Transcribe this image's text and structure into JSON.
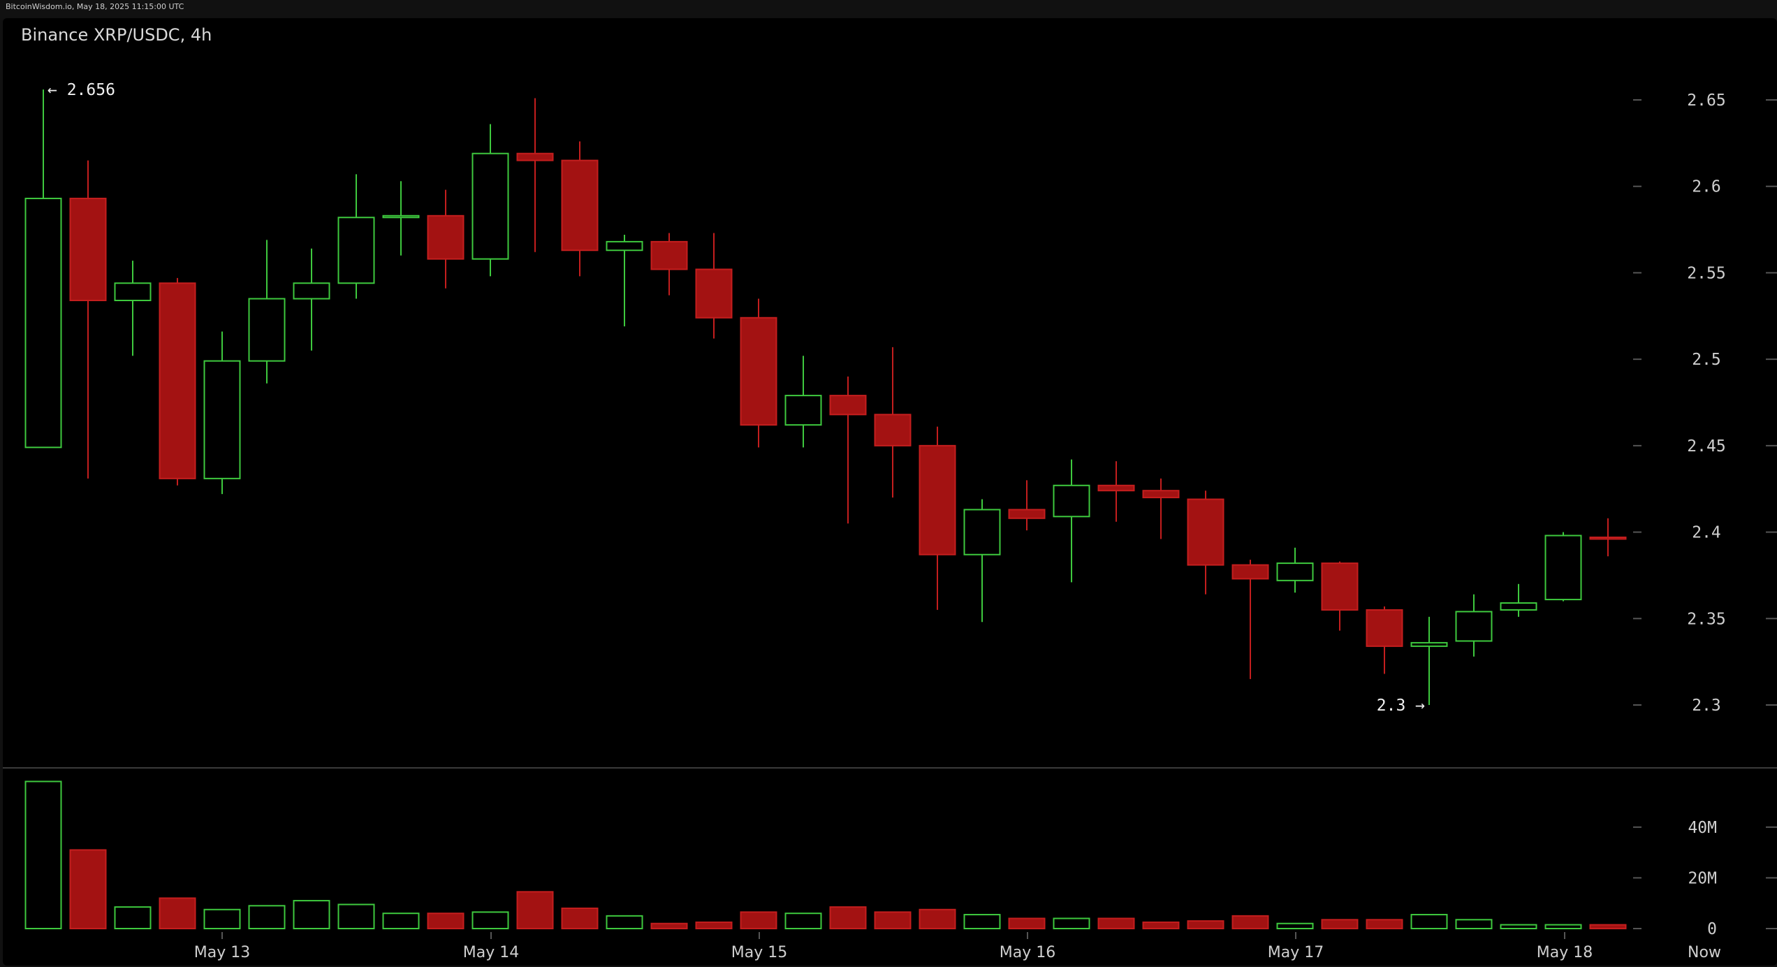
{
  "watermark": "BitcoinWisdom.io, May 18, 2025 11:15:00 UTC",
  "colors": {
    "up": "#3ec93e",
    "down": "#a31212",
    "down_edge": "#c41e1e",
    "tick": "#555555"
  },
  "chart_data": {
    "type": "candlestick",
    "title": "Binance XRP/USDC, 4h",
    "price_axis": {
      "ticks": [
        "2.3",
        "2.35",
        "2.4",
        "2.45",
        "2.5",
        "2.55",
        "2.6",
        "2.65"
      ],
      "range": [
        2.264,
        2.712
      ]
    },
    "volume_axis": {
      "ticks": [
        "0",
        "20M",
        "40M"
      ],
      "range": [
        0,
        60
      ]
    },
    "x_labels": [
      "May 13",
      "May 14",
      "May 15",
      "May 16",
      "May 17",
      "May 18",
      "Now"
    ],
    "annotations": {
      "high": "← 2.656",
      "low": "2.3 →"
    },
    "candles": [
      {
        "o": 2.449,
        "h": 2.656,
        "l": 2.449,
        "c": 2.593,
        "v": 58
      },
      {
        "o": 2.593,
        "h": 2.615,
        "l": 2.431,
        "c": 2.534,
        "v": 31
      },
      {
        "o": 2.534,
        "h": 2.557,
        "l": 2.502,
        "c": 2.544,
        "v": 8.5
      },
      {
        "o": 2.544,
        "h": 2.547,
        "l": 2.427,
        "c": 2.431,
        "v": 12
      },
      {
        "o": 2.431,
        "h": 2.516,
        "l": 2.422,
        "c": 2.499,
        "v": 7.5
      },
      {
        "o": 2.499,
        "h": 2.569,
        "l": 2.486,
        "c": 2.535,
        "v": 9
      },
      {
        "o": 2.535,
        "h": 2.564,
        "l": 2.505,
        "c": 2.544,
        "v": 11
      },
      {
        "o": 2.544,
        "h": 2.607,
        "l": 2.535,
        "c": 2.582,
        "v": 9.5
      },
      {
        "o": 2.582,
        "h": 2.603,
        "l": 2.56,
        "c": 2.583,
        "v": 6
      },
      {
        "o": 2.583,
        "h": 2.598,
        "l": 2.541,
        "c": 2.558,
        "v": 6
      },
      {
        "o": 2.558,
        "h": 2.636,
        "l": 2.548,
        "c": 2.619,
        "v": 6.5
      },
      {
        "o": 2.619,
        "h": 2.651,
        "l": 2.562,
        "c": 2.615,
        "v": 14.5
      },
      {
        "o": 2.615,
        "h": 2.626,
        "l": 2.548,
        "c": 2.563,
        "v": 8
      },
      {
        "o": 2.563,
        "h": 2.572,
        "l": 2.519,
        "c": 2.568,
        "v": 5
      },
      {
        "o": 2.568,
        "h": 2.573,
        "l": 2.537,
        "c": 2.552,
        "v": 2
      },
      {
        "o": 2.552,
        "h": 2.573,
        "l": 2.512,
        "c": 2.524,
        "v": 2.5
      },
      {
        "o": 2.524,
        "h": 2.535,
        "l": 2.449,
        "c": 2.462,
        "v": 6.5
      },
      {
        "o": 2.462,
        "h": 2.502,
        "l": 2.449,
        "c": 2.479,
        "v": 6
      },
      {
        "o": 2.479,
        "h": 2.49,
        "l": 2.405,
        "c": 2.468,
        "v": 8.5
      },
      {
        "o": 2.468,
        "h": 2.507,
        "l": 2.42,
        "c": 2.45,
        "v": 6.5
      },
      {
        "o": 2.45,
        "h": 2.461,
        "l": 2.355,
        "c": 2.387,
        "v": 7.5
      },
      {
        "o": 2.387,
        "h": 2.419,
        "l": 2.348,
        "c": 2.413,
        "v": 5.5
      },
      {
        "o": 2.413,
        "h": 2.43,
        "l": 2.401,
        "c": 2.408,
        "v": 4
      },
      {
        "o": 2.409,
        "h": 2.442,
        "l": 2.371,
        "c": 2.427,
        "v": 4
      },
      {
        "o": 2.427,
        "h": 2.441,
        "l": 2.406,
        "c": 2.424,
        "v": 4
      },
      {
        "o": 2.424,
        "h": 2.431,
        "l": 2.396,
        "c": 2.42,
        "v": 2.5
      },
      {
        "o": 2.419,
        "h": 2.424,
        "l": 2.364,
        "c": 2.381,
        "v": 3
      },
      {
        "o": 2.381,
        "h": 2.384,
        "l": 2.315,
        "c": 2.373,
        "v": 5
      },
      {
        "o": 2.372,
        "h": 2.391,
        "l": 2.365,
        "c": 2.382,
        "v": 2
      },
      {
        "o": 2.382,
        "h": 2.383,
        "l": 2.343,
        "c": 2.355,
        "v": 3.5
      },
      {
        "o": 2.355,
        "h": 2.357,
        "l": 2.318,
        "c": 2.334,
        "v": 3.5
      },
      {
        "o": 2.334,
        "h": 2.351,
        "l": 2.3,
        "c": 2.336,
        "v": 5.5
      },
      {
        "o": 2.337,
        "h": 2.364,
        "l": 2.328,
        "c": 2.354,
        "v": 3.5
      },
      {
        "o": 2.355,
        "h": 2.37,
        "l": 2.351,
        "c": 2.359,
        "v": 1.5
      },
      {
        "o": 2.361,
        "h": 2.4,
        "l": 2.36,
        "c": 2.398,
        "v": 1.5
      },
      {
        "o": 2.397,
        "h": 2.408,
        "l": 2.386,
        "c": 2.396,
        "v": 1.5
      }
    ]
  }
}
